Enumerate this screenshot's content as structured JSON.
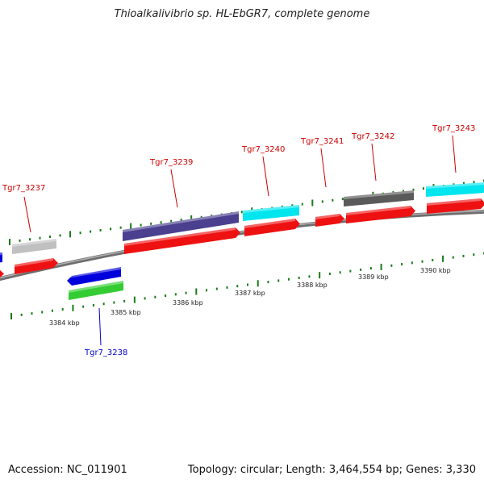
{
  "title": "Thioalkalivibrio sp. HL-EbGR7, complete genome",
  "footer": {
    "accession": "Accession: NC_011901",
    "summary": "Topology: circular; Length: 3,464,554 bp; Genes: 3,330"
  },
  "colors": {
    "backbone": "#8c8c8c",
    "cds": "#ee1111",
    "tick": "#1a7a1a",
    "label_forward": "#cc0000",
    "label_reverse": "#0000cc"
  },
  "kbp_labels": [
    {
      "text": "3384 kbp"
    },
    {
      "text": "3385 kbp"
    },
    {
      "text": "3386 kbp"
    },
    {
      "text": "3387 kbp"
    },
    {
      "text": "3388 kbp"
    },
    {
      "text": "3389 kbp"
    },
    {
      "text": "3390 kbp"
    }
  ],
  "gene_labels": [
    {
      "text": "Tgr7_3237",
      "strand": "forward"
    },
    {
      "text": "Tgr7_3238",
      "strand": "reverse"
    },
    {
      "text": "Tgr7_3239",
      "strand": "forward"
    },
    {
      "text": "Tgr7_3240",
      "strand": "forward"
    },
    {
      "text": "Tgr7_3241",
      "strand": "forward"
    },
    {
      "text": "Tgr7_3242",
      "strand": "forward"
    },
    {
      "text": "Tgr7_3243",
      "strand": "forward"
    }
  ]
}
